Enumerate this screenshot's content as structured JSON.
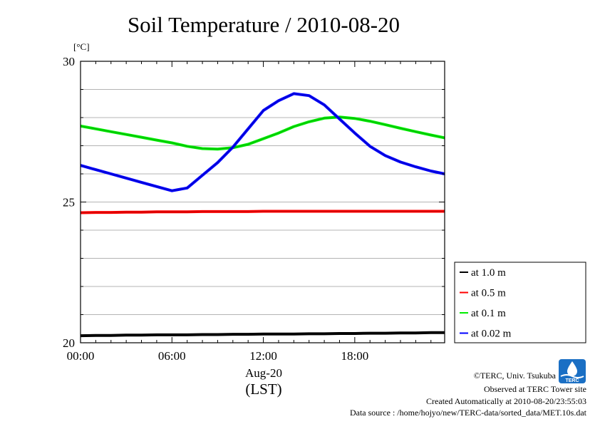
{
  "chart_data": {
    "type": "line",
    "title": "Soil Temperature / 2010-08-20",
    "y_unit": "[°C]",
    "xlabel_line1": "Aug-20",
    "xlabel_line2": "(LST)",
    "ylim": [
      20,
      30
    ],
    "xlim": [
      0,
      23.9
    ],
    "yticks": [
      20,
      25,
      30
    ],
    "ytick_labels": [
      "20",
      "25",
      "30"
    ],
    "xticks": [
      0,
      6,
      12,
      18
    ],
    "xtick_labels": [
      "00:00",
      "06:00",
      "12:00",
      "18:00"
    ],
    "grid": true,
    "legend_position": "right-bottom",
    "x": [
      0,
      1,
      2,
      3,
      4,
      5,
      6,
      7,
      8,
      9,
      10,
      11,
      12,
      13,
      14,
      15,
      16,
      17,
      18,
      19,
      20,
      21,
      22,
      23,
      23.9
    ],
    "series": [
      {
        "name": "at 1.0 m",
        "color": "#000000",
        "values": [
          20.25,
          20.26,
          20.26,
          20.27,
          20.27,
          20.28,
          20.28,
          20.28,
          20.29,
          20.29,
          20.3,
          20.3,
          20.31,
          20.31,
          20.31,
          20.32,
          20.32,
          20.33,
          20.33,
          20.34,
          20.34,
          20.35,
          20.35,
          20.36,
          20.36
        ]
      },
      {
        "name": "at 0.5 m",
        "color": "#ff0000",
        "values": [
          24.62,
          24.63,
          24.63,
          24.64,
          24.64,
          24.65,
          24.65,
          24.65,
          24.66,
          24.66,
          24.66,
          24.66,
          24.67,
          24.67,
          24.67,
          24.67,
          24.67,
          24.67,
          24.67,
          24.67,
          24.67,
          24.67,
          24.67,
          24.67,
          24.67
        ]
      },
      {
        "name": "at 0.1 m",
        "color": "#00ee00",
        "values": [
          27.7,
          27.6,
          27.5,
          27.4,
          27.3,
          27.2,
          27.1,
          26.98,
          26.9,
          26.88,
          26.93,
          27.05,
          27.25,
          27.45,
          27.68,
          27.85,
          27.98,
          28.02,
          27.97,
          27.87,
          27.75,
          27.62,
          27.5,
          27.38,
          27.28
        ]
      },
      {
        "name": "at 0.02 m",
        "color": "#0000ff",
        "values": [
          26.3,
          26.15,
          26.0,
          25.85,
          25.7,
          25.55,
          25.4,
          25.5,
          25.95,
          26.4,
          26.95,
          27.6,
          28.25,
          28.6,
          28.85,
          28.78,
          28.45,
          27.95,
          27.45,
          26.98,
          26.65,
          26.42,
          26.25,
          26.1,
          26.0
        ]
      }
    ]
  },
  "credits": {
    "copyright": "©TERC, Univ. Tsukuba",
    "observed": "Observed at TERC Tower site",
    "created": "Created Automatically at 2010-08-20/23:55:03",
    "source": "Data source : /home/hojyo/new/TERC-data/sorted_data/MET.10s.dat",
    "logo_text": "TERC"
  }
}
